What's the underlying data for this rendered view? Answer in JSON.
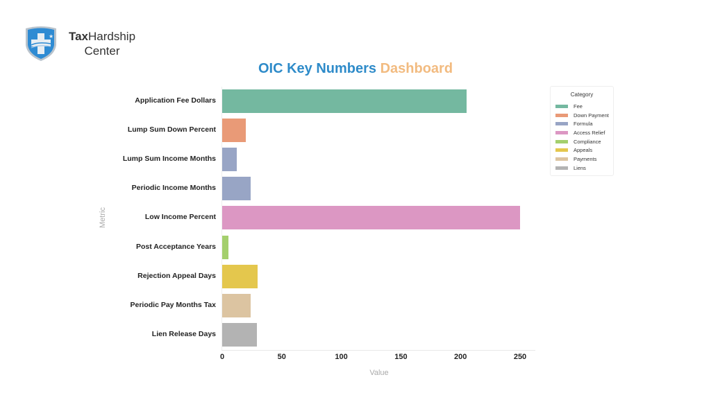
{
  "brand": {
    "name_bold": "Tax",
    "name_rest": "Hardship",
    "line2": "Center"
  },
  "title": {
    "part1": "OIC Key Numbers",
    "part2": "Dashboard"
  },
  "chart_data": {
    "type": "bar",
    "orientation": "horizontal",
    "title": "OIC Key Numbers Dashboard",
    "xlabel": "Value",
    "ylabel": "Metric",
    "xlim": [
      0,
      260
    ],
    "xticks": [
      0,
      50,
      100,
      150,
      200,
      250
    ],
    "grid": false,
    "legend_title": "Category",
    "legend_position": "right",
    "categories": [
      "Application Fee Dollars",
      "Lump Sum Down Percent",
      "Lump Sum Income Months",
      "Periodic Income Months",
      "Low Income Percent",
      "Post Acceptance Years",
      "Rejection Appeal Days",
      "Periodic Pay Months Tax",
      "Lien Release Days"
    ],
    "values": [
      205,
      20,
      12,
      24,
      250,
      5,
      30,
      24,
      29
    ],
    "bar_categories": [
      "Fee",
      "Down Payment",
      "Formula",
      "Formula",
      "Access Relief",
      "Compliance",
      "Appeals",
      "Payments",
      "Liens"
    ],
    "legend": [
      {
        "label": "Fee",
        "color": "#74b8a0"
      },
      {
        "label": "Down Payment",
        "color": "#e99a77"
      },
      {
        "label": "Formula",
        "color": "#98a5c5"
      },
      {
        "label": "Access Relief",
        "color": "#dc97c3"
      },
      {
        "label": "Compliance",
        "color": "#a4cf6d"
      },
      {
        "label": "Appeals",
        "color": "#e4c74d"
      },
      {
        "label": "Payments",
        "color": "#dcc4a1"
      },
      {
        "label": "Liens",
        "color": "#b3b3b3"
      }
    ]
  }
}
